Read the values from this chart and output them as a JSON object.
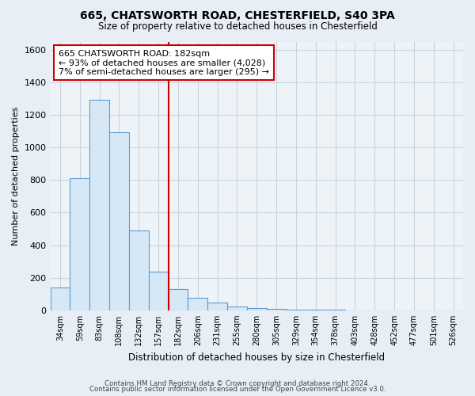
{
  "title": "665, CHATSWORTH ROAD, CHESTERFIELD, S40 3PA",
  "subtitle": "Size of property relative to detached houses in Chesterfield",
  "xlabel": "Distribution of detached houses by size in Chesterfield",
  "ylabel": "Number of detached properties",
  "bin_labels": [
    "34sqm",
    "59sqm",
    "83sqm",
    "108sqm",
    "132sqm",
    "157sqm",
    "182sqm",
    "206sqm",
    "231sqm",
    "255sqm",
    "280sqm",
    "305sqm",
    "329sqm",
    "354sqm",
    "378sqm",
    "403sqm",
    "428sqm",
    "452sqm",
    "477sqm",
    "501sqm",
    "526sqm"
  ],
  "bar_heights": [
    140,
    810,
    1295,
    1095,
    490,
    235,
    130,
    75,
    50,
    25,
    15,
    8,
    3,
    3,
    2,
    0,
    0,
    0,
    0,
    0,
    0
  ],
  "bar_color": "#d6e8f5",
  "bar_edge_color": "#5b9bd5",
  "vline_index": 6,
  "vline_color": "#cc0000",
  "annotation_line1": "665 CHATSWORTH ROAD: 182sqm",
  "annotation_line2": "← 93% of detached houses are smaller (4,028)",
  "annotation_line3": "7% of semi-detached houses are larger (295) →",
  "annotation_box_edge_color": "#cc0000",
  "ylim": [
    0,
    1650
  ],
  "yticks": [
    0,
    200,
    400,
    600,
    800,
    1000,
    1200,
    1400,
    1600
  ],
  "footer_line1": "Contains HM Land Registry data © Crown copyright and database right 2024.",
  "footer_line2": "Contains public sector information licensed under the Open Government Licence v3.0.",
  "background_color": "#e8eef5",
  "plot_background_color": "#eef3f8",
  "grid_color": "#c8d4e0"
}
